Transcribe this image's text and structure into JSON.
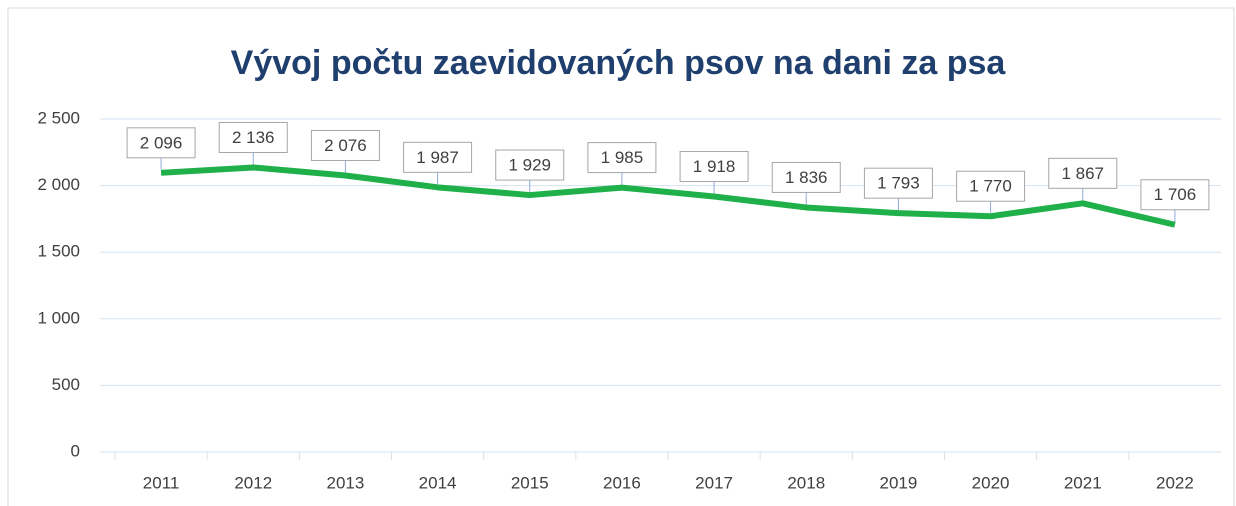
{
  "chart_data": {
    "type": "line",
    "title": "Vývoj počtu zaevidovaných psov na dani za psa",
    "categories": [
      "2011",
      "2012",
      "2013",
      "2014",
      "2015",
      "2016",
      "2017",
      "2018",
      "2019",
      "2020",
      "2021",
      "2022"
    ],
    "series": [
      {
        "color": "#1fb04a",
        "values": [
          2096,
          2136,
          2076,
          1987,
          1929,
          1985,
          1918,
          1836,
          1793,
          1770,
          1867,
          1706
        ],
        "value_labels": [
          "2 096",
          "2 136",
          "2 076",
          "1 987",
          "1 929",
          "1 985",
          "1 918",
          "1 836",
          "1 793",
          "1 770",
          "1 867",
          "1 706"
        ]
      }
    ],
    "ylim": [
      0,
      2500
    ],
    "yticks": [
      0,
      500,
      {
        "value": 1000,
        "label": "1 000"
      },
      {
        "value": 1500,
        "label": "1 500"
      },
      {
        "value": 2000,
        "label": "2 000"
      },
      {
        "value": 2500,
        "label": "2 500"
      }
    ],
    "grid": true
  }
}
